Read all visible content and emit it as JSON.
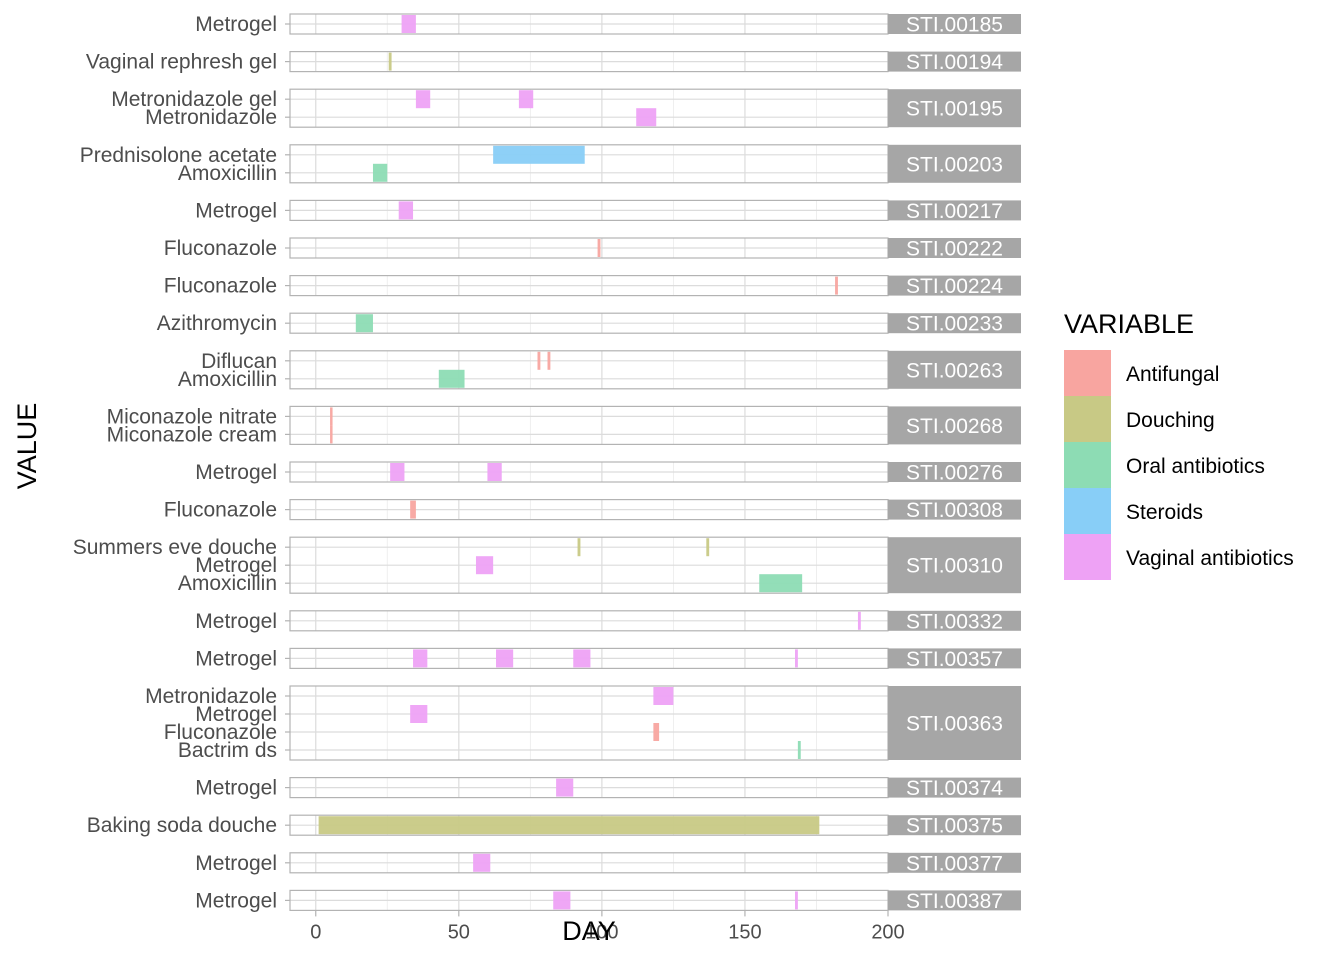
{
  "chart_data": {
    "type": "bar",
    "subtype": "faceted-timeline",
    "xlabel": "DAY",
    "ylabel": "VALUE",
    "xlim": [
      -9,
      200
    ],
    "xticks": [
      0,
      50,
      100,
      150,
      200
    ],
    "grid": true,
    "legend": {
      "title": "VARIABLE",
      "placement": "right",
      "entries": [
        {
          "name": "Antifungal",
          "color": "#F8A5A0"
        },
        {
          "name": "Douching",
          "color": "#C8C985"
        },
        {
          "name": "Oral antibiotics",
          "color": "#8DDCB4"
        },
        {
          "name": "Steroids",
          "color": "#88CEF7"
        },
        {
          "name": "Vaginal antibiotics",
          "color": "#EEA2F5"
        }
      ]
    },
    "facets": [
      {
        "id": "STI.00185",
        "values": [
          "Metrogel"
        ],
        "segments": [
          {
            "value": "Metrogel",
            "variable": "Vaginal antibiotics",
            "start": 30,
            "end": 35
          }
        ]
      },
      {
        "id": "STI.00194",
        "values": [
          "Vaginal rephresh gel"
        ],
        "segments": [
          {
            "value": "Vaginal rephresh gel",
            "variable": "Douching",
            "start": 25.5,
            "end": 26.5
          }
        ]
      },
      {
        "id": "STI.00195",
        "values": [
          "Metronidazole gel",
          "Metronidazole"
        ],
        "segments": [
          {
            "value": "Metronidazole gel",
            "variable": "Vaginal antibiotics",
            "start": 35,
            "end": 40
          },
          {
            "value": "Metronidazole gel",
            "variable": "Vaginal antibiotics",
            "start": 71,
            "end": 76
          },
          {
            "value": "Metronidazole",
            "variable": "Vaginal antibiotics",
            "start": 112,
            "end": 119
          }
        ]
      },
      {
        "id": "STI.00203",
        "values": [
          "Prednisolone acetate",
          "Amoxicillin"
        ],
        "segments": [
          {
            "value": "Prednisolone acetate",
            "variable": "Steroids",
            "start": 62,
            "end": 94
          },
          {
            "value": "Amoxicillin",
            "variable": "Oral antibiotics",
            "start": 20,
            "end": 25
          }
        ]
      },
      {
        "id": "STI.00217",
        "values": [
          "Metrogel"
        ],
        "segments": [
          {
            "value": "Metrogel",
            "variable": "Vaginal antibiotics",
            "start": 29,
            "end": 34
          }
        ]
      },
      {
        "id": "STI.00222",
        "values": [
          "Fluconazole"
        ],
        "segments": [
          {
            "value": "Fluconazole",
            "variable": "Antifungal",
            "start": 98.5,
            "end": 99.5
          }
        ]
      },
      {
        "id": "STI.00224",
        "values": [
          "Fluconazole"
        ],
        "segments": [
          {
            "value": "Fluconazole",
            "variable": "Antifungal",
            "start": 181.5,
            "end": 182.5
          }
        ]
      },
      {
        "id": "STI.00233",
        "values": [
          "Azithromycin"
        ],
        "segments": [
          {
            "value": "Azithromycin",
            "variable": "Oral antibiotics",
            "start": 14,
            "end": 20
          }
        ]
      },
      {
        "id": "STI.00263",
        "values": [
          "Diflucan",
          "Amoxicillin"
        ],
        "segments": [
          {
            "value": "Diflucan",
            "variable": "Antifungal",
            "start": 77.5,
            "end": 78.5
          },
          {
            "value": "Diflucan",
            "variable": "Antifungal",
            "start": 81,
            "end": 82
          },
          {
            "value": "Amoxicillin",
            "variable": "Oral antibiotics",
            "start": 43,
            "end": 52
          }
        ]
      },
      {
        "id": "STI.00268",
        "values": [
          "Miconazole nitrate",
          "Miconazole cream"
        ],
        "segments": [
          {
            "value": "Miconazole cream",
            "variable": "Antifungal",
            "start": 5,
            "end": 5.8
          },
          {
            "value": "Miconazole nitrate",
            "variable": "Antifungal",
            "start": 5,
            "end": 5.8
          }
        ]
      },
      {
        "id": "STI.00276",
        "values": [
          "Metrogel"
        ],
        "segments": [
          {
            "value": "Metrogel",
            "variable": "Vaginal antibiotics",
            "start": 26,
            "end": 31
          },
          {
            "value": "Metrogel",
            "variable": "Vaginal antibiotics",
            "start": 60,
            "end": 65
          }
        ]
      },
      {
        "id": "STI.00308",
        "values": [
          "Fluconazole"
        ],
        "segments": [
          {
            "value": "Fluconazole",
            "variable": "Antifungal",
            "start": 33,
            "end": 35
          }
        ]
      },
      {
        "id": "STI.00310",
        "values": [
          "Summers eve douche",
          "Metrogel",
          "Amoxicillin"
        ],
        "segments": [
          {
            "value": "Summers eve douche",
            "variable": "Douching",
            "start": 91.5,
            "end": 92.5
          },
          {
            "value": "Summers eve douche",
            "variable": "Douching",
            "start": 136.5,
            "end": 137.5
          },
          {
            "value": "Metrogel",
            "variable": "Vaginal antibiotics",
            "start": 56,
            "end": 62
          },
          {
            "value": "Amoxicillin",
            "variable": "Oral antibiotics",
            "start": 155,
            "end": 170
          }
        ]
      },
      {
        "id": "STI.00332",
        "values": [
          "Metrogel"
        ],
        "segments": [
          {
            "value": "Metrogel",
            "variable": "Vaginal antibiotics",
            "start": 189.5,
            "end": 190.5
          }
        ]
      },
      {
        "id": "STI.00357",
        "values": [
          "Metrogel"
        ],
        "segments": [
          {
            "value": "Metrogel",
            "variable": "Vaginal antibiotics",
            "start": 34,
            "end": 39
          },
          {
            "value": "Metrogel",
            "variable": "Vaginal antibiotics",
            "start": 63,
            "end": 69
          },
          {
            "value": "Metrogel",
            "variable": "Vaginal antibiotics",
            "start": 90,
            "end": 96
          },
          {
            "value": "Metrogel",
            "variable": "Vaginal antibiotics",
            "start": 167.5,
            "end": 168.5
          }
        ]
      },
      {
        "id": "STI.00363",
        "values": [
          "Metronidazole",
          "Metrogel",
          "Fluconazole",
          "Bactrim ds"
        ],
        "segments": [
          {
            "value": "Metronidazole",
            "variable": "Vaginal antibiotics",
            "start": 118,
            "end": 125
          },
          {
            "value": "Metrogel",
            "variable": "Vaginal antibiotics",
            "start": 33,
            "end": 39
          },
          {
            "value": "Fluconazole",
            "variable": "Antifungal",
            "start": 118,
            "end": 120
          },
          {
            "value": "Bactrim ds",
            "variable": "Oral antibiotics",
            "start": 168.5,
            "end": 169.5
          }
        ]
      },
      {
        "id": "STI.00374",
        "values": [
          "Metrogel"
        ],
        "segments": [
          {
            "value": "Metrogel",
            "variable": "Vaginal antibiotics",
            "start": 84,
            "end": 90
          }
        ]
      },
      {
        "id": "STI.00375",
        "values": [
          "Baking soda douche"
        ],
        "segments": [
          {
            "value": "Baking soda douche",
            "variable": "Douching",
            "start": 1,
            "end": 176
          }
        ]
      },
      {
        "id": "STI.00377",
        "values": [
          "Metrogel"
        ],
        "segments": [
          {
            "value": "Metrogel",
            "variable": "Vaginal antibiotics",
            "start": 55,
            "end": 61
          }
        ]
      },
      {
        "id": "STI.00387",
        "values": [
          "Metrogel"
        ],
        "segments": [
          {
            "value": "Metrogel",
            "variable": "Vaginal antibiotics",
            "start": 83,
            "end": 89
          },
          {
            "value": "Metrogel",
            "variable": "Vaginal antibiotics",
            "start": 167.5,
            "end": 168.5
          }
        ]
      }
    ]
  }
}
